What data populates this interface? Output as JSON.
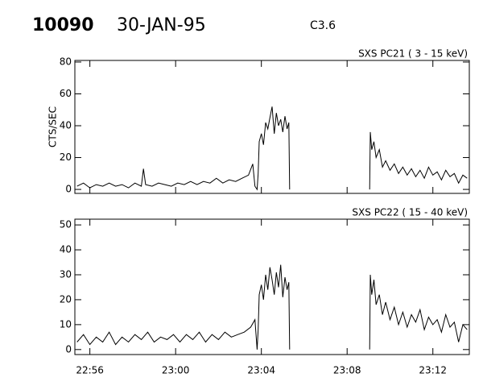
{
  "header": {
    "id": "10090",
    "date": "30-JAN-95",
    "class": "C3.6"
  },
  "chart_data": [
    {
      "type": "line",
      "title": "SXS PC21  (  3 - 15 keV)",
      "y_label": "CTS/SEC",
      "color": "#000000",
      "xlim": [
        1375.3,
        1393.7
      ],
      "ylim": [
        -2.5,
        81
      ],
      "yticks": [
        0,
        20,
        40,
        60,
        80
      ],
      "x": [
        1375.4,
        1375.7,
        1376.0,
        1376.3,
        1376.6,
        1376.9,
        1377.2,
        1377.5,
        1377.8,
        1378.1,
        1378.4,
        1378.5,
        1378.6,
        1378.9,
        1379.2,
        1379.5,
        1379.8,
        1380.1,
        1380.4,
        1380.7,
        1381.0,
        1381.3,
        1381.6,
        1381.9,
        1382.2,
        1382.5,
        1382.8,
        1383.1,
        1383.4,
        1383.6,
        1383.7,
        1383.8,
        1383.85,
        1383.9,
        1384.0,
        1384.1,
        1384.2,
        1384.3,
        1384.4,
        1384.5,
        1384.6,
        1384.7,
        1384.8,
        1384.9,
        1385.0,
        1385.1,
        1385.2,
        1385.28,
        1385.32,
        1387.0,
        1389.05,
        1389.08,
        1389.15,
        1389.25,
        1389.35,
        1389.5,
        1389.65,
        1389.8,
        1390.0,
        1390.2,
        1390.4,
        1390.6,
        1390.8,
        1391.0,
        1391.2,
        1391.4,
        1391.6,
        1391.8,
        1392.0,
        1392.2,
        1392.4,
        1392.6,
        1392.8,
        1393.0,
        1393.2,
        1393.4,
        1393.6
      ],
      "values": [
        2,
        4,
        1,
        3,
        2,
        4,
        2,
        3,
        1,
        4,
        2,
        13,
        3,
        2,
        4,
        3,
        2,
        4,
        3,
        5,
        3,
        5,
        4,
        7,
        4,
        6,
        5,
        7,
        9,
        16,
        2,
        0,
        10,
        30,
        35,
        28,
        42,
        38,
        45,
        52,
        35,
        48,
        40,
        44,
        36,
        46,
        38,
        42,
        0,
        null,
        0,
        36,
        25,
        30,
        20,
        25,
        14,
        18,
        12,
        16,
        10,
        14,
        9,
        13,
        8,
        12,
        7,
        14,
        9,
        11,
        6,
        12,
        8,
        10,
        4,
        9,
        7
      ]
    },
    {
      "type": "line",
      "title": "SXS PC22  ( 15 - 40 keV)",
      "color": "#000000",
      "xlim": [
        1375.3,
        1393.7
      ],
      "ylim": [
        -2,
        52.3
      ],
      "yticks": [
        0,
        10,
        20,
        30,
        40,
        50
      ],
      "xticks": [
        {
          "value": 1376,
          "label": "22:56"
        },
        {
          "value": 1380,
          "label": "23:00"
        },
        {
          "value": 1384,
          "label": "23:04"
        },
        {
          "value": 1388,
          "label": "23:08"
        },
        {
          "value": 1392,
          "label": "23:12"
        }
      ],
      "x": [
        1375.4,
        1375.7,
        1376.0,
        1376.3,
        1376.6,
        1376.9,
        1377.2,
        1377.5,
        1377.8,
        1378.1,
        1378.4,
        1378.7,
        1379.0,
        1379.3,
        1379.6,
        1379.9,
        1380.2,
        1380.5,
        1380.8,
        1381.1,
        1381.4,
        1381.7,
        1382.0,
        1382.3,
        1382.6,
        1382.9,
        1383.2,
        1383.5,
        1383.7,
        1383.8,
        1383.85,
        1383.9,
        1384.0,
        1384.1,
        1384.2,
        1384.3,
        1384.4,
        1384.5,
        1384.6,
        1384.7,
        1384.8,
        1384.9,
        1385.0,
        1385.1,
        1385.2,
        1385.28,
        1385.32,
        1387.0,
        1389.05,
        1389.08,
        1389.15,
        1389.25,
        1389.35,
        1389.5,
        1389.65,
        1389.8,
        1390.0,
        1390.2,
        1390.4,
        1390.6,
        1390.8,
        1391.0,
        1391.2,
        1391.4,
        1391.6,
        1391.8,
        1392.0,
        1392.2,
        1392.4,
        1392.6,
        1392.8,
        1393.0,
        1393.2,
        1393.4,
        1393.6
      ],
      "values": [
        3,
        6,
        2,
        5,
        3,
        7,
        2,
        5,
        3,
        6,
        4,
        7,
        3,
        5,
        4,
        6,
        3,
        6,
        4,
        7,
        3,
        6,
        4,
        7,
        5,
        6,
        7,
        9,
        12,
        0,
        8,
        22,
        26,
        20,
        30,
        24,
        33,
        28,
        22,
        31,
        25,
        34,
        21,
        29,
        24,
        27,
        0,
        null,
        0,
        30,
        22,
        28,
        18,
        22,
        14,
        19,
        12,
        17,
        10,
        15,
        9,
        14,
        11,
        16,
        8,
        13,
        10,
        12,
        7,
        14,
        9,
        11,
        3,
        10,
        8
      ]
    }
  ]
}
